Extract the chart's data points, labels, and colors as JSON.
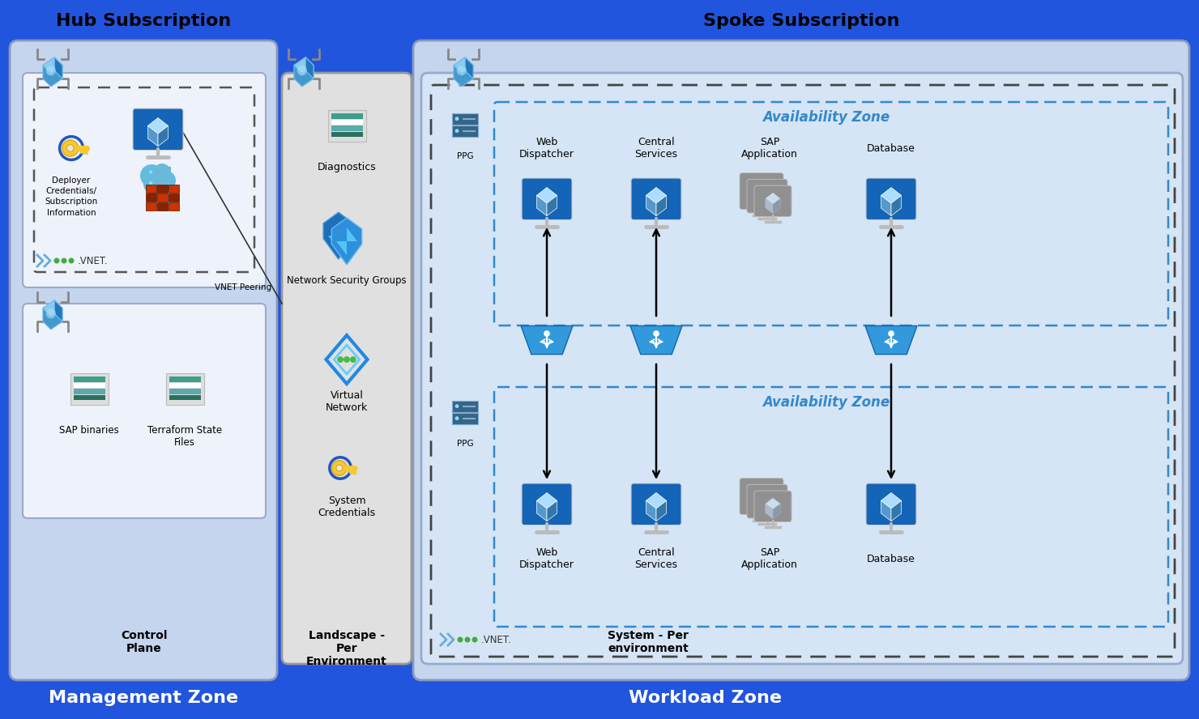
{
  "bg_color": "#2255DD",
  "title_hub": "Hub Subscription",
  "title_spoke": "Spoke Subscription",
  "title_mgmt": "Management Zone",
  "title_workload": "Workload Zone",
  "label_control_plane": "Control\nPlane",
  "label_landscape": "Landscape -\nPer\nEnvironment",
  "label_system": "System - Per\nenvironment",
  "label_deployer_creds": "Deployer\nCredentials/\nSubscription\nInformation",
  "label_diagnostics": "Diagnostics",
  "label_nsg": "Network Security Groups",
  "label_vnet": "Virtual\nNetwork",
  "label_sys_creds": "System\nCredentials",
  "label_sap_binaries": "SAP binaries",
  "label_terraform": "Terraform State\nFiles",
  "label_vnet_peering": "VNET Peering",
  "label_ppg": "PPG",
  "label_avzone": "Availability Zone",
  "label_web_disp": "Web\nDispatcher",
  "label_central_svc": "Central\nServices",
  "label_sap_app": "SAP\nApplication",
  "label_database": "Database",
  "hub_bg": "#C5D5EE",
  "spoke_bg": "#C5D5EE",
  "inner_bg": "#EEF2FA",
  "landscape_bg": "#E0E0E0",
  "system_bg": "#D5E5F5",
  "avzone_border": "#3388CC",
  "dashed_border_dark": "#444444",
  "white_bg": "#F5F5F5"
}
